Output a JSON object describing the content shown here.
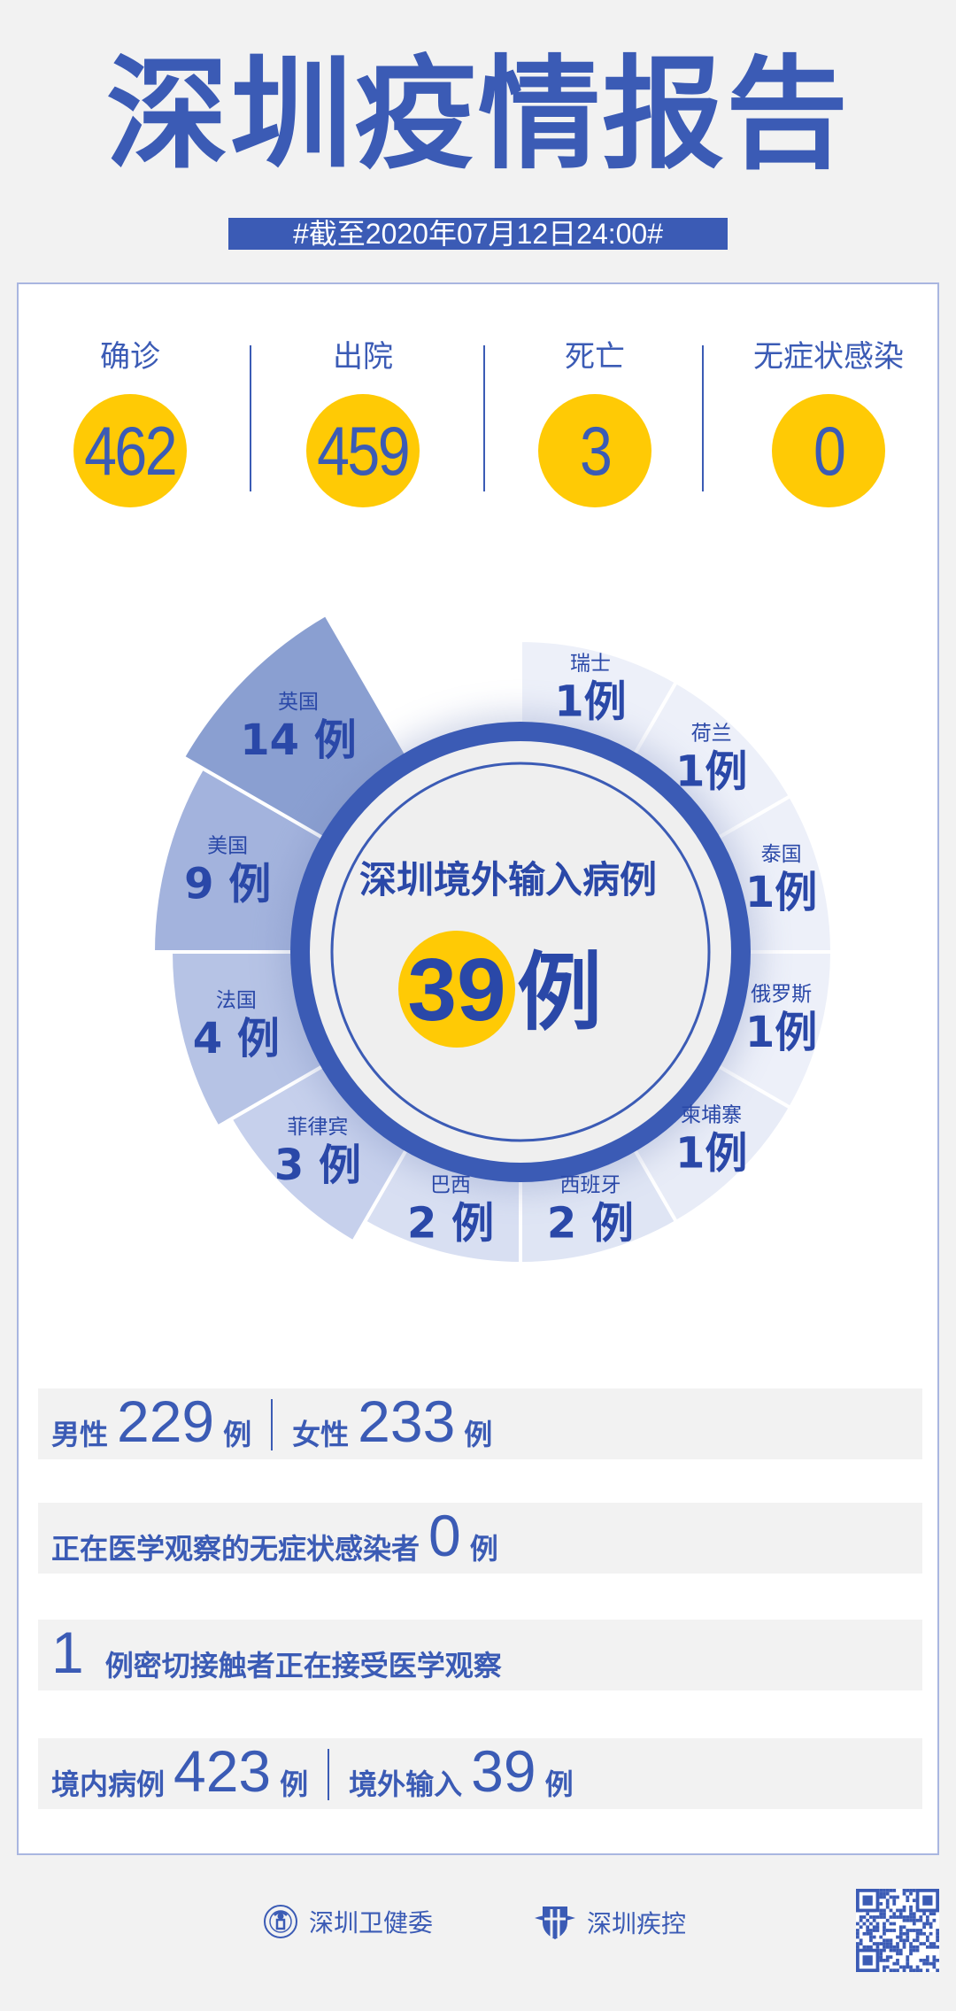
{
  "header": {
    "title": "深圳疫情报告",
    "date": "#截至2020年07月12日24:00#"
  },
  "stats": [
    {
      "label": "确诊",
      "value": "462"
    },
    {
      "label": "出院",
      "value": "459"
    },
    {
      "label": "死亡",
      "value": "3"
    },
    {
      "label": "无症状感染",
      "value": "0"
    }
  ],
  "imported": {
    "title": "深圳境外输入病例",
    "total": "39",
    "unit": "例",
    "countries": [
      {
        "name": "瑞士",
        "count": 1
      },
      {
        "name": "荷兰",
        "count": 1
      },
      {
        "name": "泰国",
        "count": 1
      },
      {
        "name": "俄罗斯",
        "count": 1
      },
      {
        "name": "柬埔寨",
        "count": 1
      },
      {
        "name": "西班牙",
        "count": 2
      },
      {
        "name": "巴西",
        "count": 2
      },
      {
        "name": "菲律宾",
        "count": 3
      },
      {
        "name": "法国",
        "count": 4
      },
      {
        "name": "美国",
        "count": 9
      },
      {
        "name": "英国",
        "count": 14
      }
    ]
  },
  "rows": {
    "gender": {
      "male_label": "男性",
      "male": "229",
      "female_label": "女性",
      "female": "233",
      "unit": "例"
    },
    "asymptomatic": {
      "label": "正在医学观察的无症状感染者",
      "value": "0",
      "unit": "例"
    },
    "contacts": {
      "value": "1",
      "label": "例密切接触者正在接受医学观察"
    },
    "origin": {
      "local_label": "境内病例",
      "local": "423",
      "imported_label": "境外输入",
      "imported": "39",
      "unit": "例"
    }
  },
  "footer": {
    "org1": "深圳卫健委",
    "org2": "深圳疾控"
  },
  "colors": {
    "brand": "#3b5bb5",
    "accent": "#ffca05",
    "background": "#f2f2f2"
  }
}
